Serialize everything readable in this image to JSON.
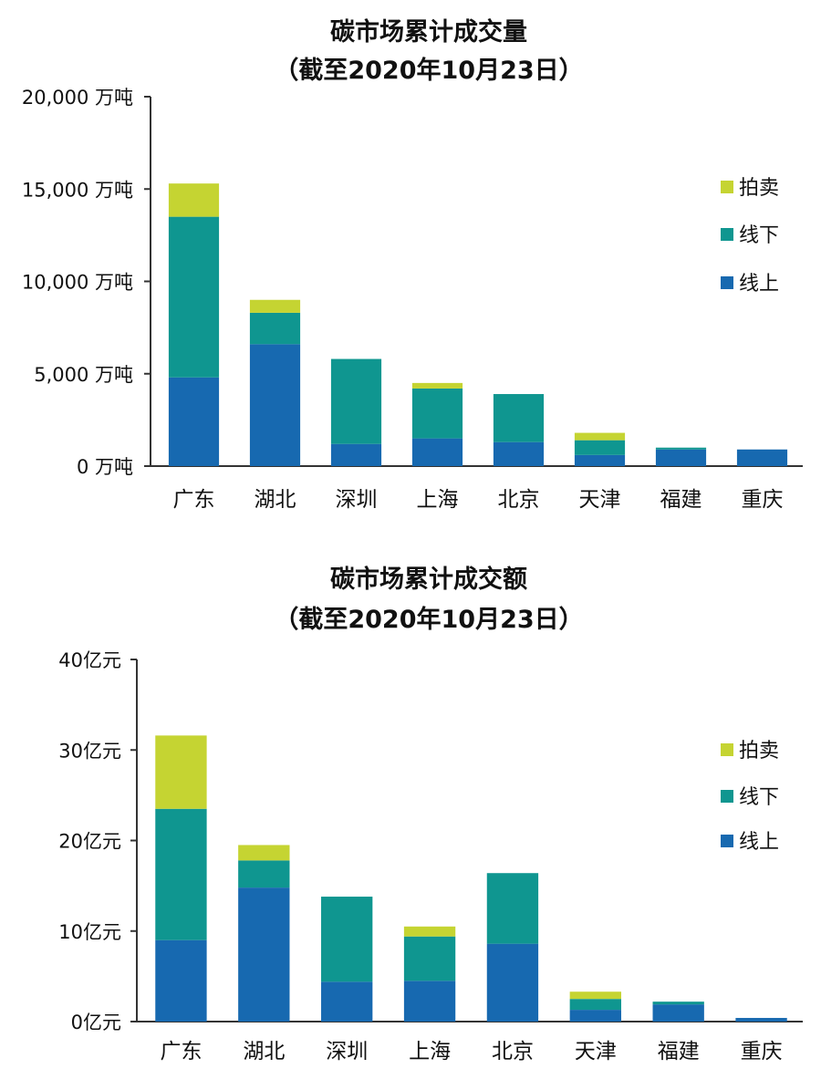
{
  "colors": {
    "auction": "#c5d432",
    "offline": "#0f9690",
    "online": "#1769b0"
  },
  "legend": [
    "拍卖",
    "线下",
    "线上"
  ],
  "chart_data": [
    {
      "type": "bar",
      "stacked": true,
      "title": "碳市场累计成交量",
      "subtitle": "（截至2020年10月23日）",
      "categories": [
        "广东",
        "湖北",
        "深圳",
        "上海",
        "北京",
        "天津",
        "福建",
        "重庆"
      ],
      "yticks": [
        "0 万吨",
        "5,000 万吨",
        "10,000 万吨",
        "15,000 万吨",
        "20,000 万吨"
      ],
      "ylim": [
        0,
        20000
      ],
      "legend_position": "right",
      "series": [
        {
          "name": "线上",
          "values": [
            4800,
            6600,
            1200,
            1500,
            1300,
            600,
            900,
            900
          ]
        },
        {
          "name": "线下",
          "values": [
            8700,
            1700,
            4600,
            2700,
            2600,
            800,
            100,
            0
          ]
        },
        {
          "name": "拍卖",
          "values": [
            1800,
            700,
            0,
            300,
            0,
            400,
            0,
            0
          ]
        }
      ]
    },
    {
      "type": "bar",
      "stacked": true,
      "title": "碳市场累计成交额",
      "subtitle": "（截至2020年10月23日）",
      "categories": [
        "广东",
        "湖北",
        "深圳",
        "上海",
        "北京",
        "天津",
        "福建",
        "重庆"
      ],
      "yticks": [
        "0亿元",
        "10亿元",
        "20亿元",
        "30亿元",
        "40亿元"
      ],
      "ylim": [
        0,
        40
      ],
      "legend_position": "right",
      "series": [
        {
          "name": "线上",
          "values": [
            9.0,
            14.8,
            4.4,
            4.5,
            8.6,
            1.3,
            1.9,
            0.4
          ]
        },
        {
          "name": "线下",
          "values": [
            14.5,
            3.0,
            9.4,
            4.9,
            7.8,
            1.2,
            0.3,
            0
          ]
        },
        {
          "name": "拍卖",
          "values": [
            8.1,
            1.7,
            0,
            1.1,
            0,
            0.8,
            0,
            0
          ]
        }
      ]
    }
  ]
}
